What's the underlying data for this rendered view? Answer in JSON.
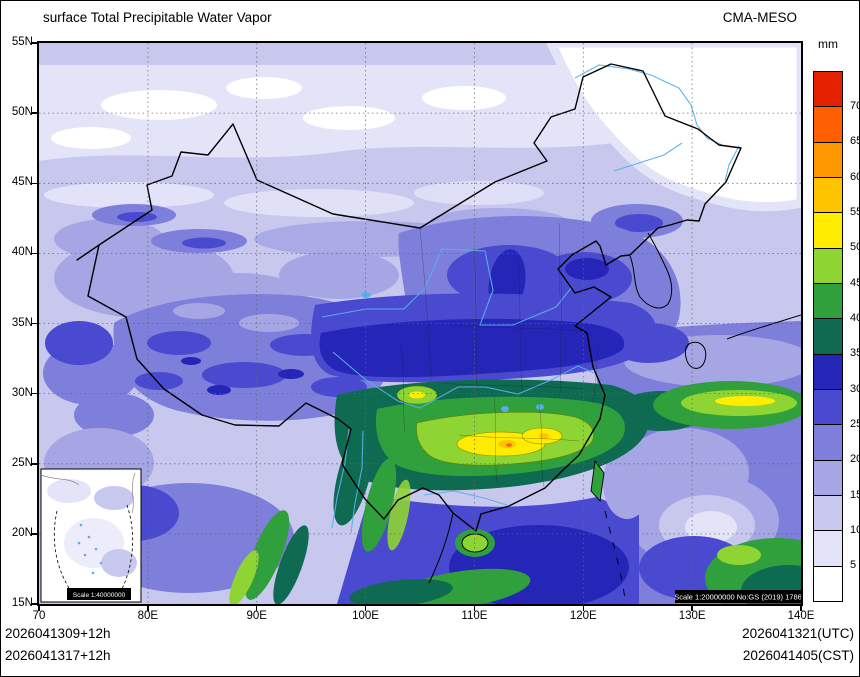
{
  "header": {
    "title": "surface Total Precipitable Water Vapor",
    "model_label": "CMA-MESO"
  },
  "colorbar": {
    "unit": "mm",
    "levels": [
      "5",
      "10",
      "15",
      "20",
      "25",
      "30",
      "35",
      "40",
      "45",
      "50",
      "55",
      "60",
      "65",
      "70"
    ],
    "colors_bottom_to_top": [
      "#ffffff",
      "#e4e4f8",
      "#c8c8ef",
      "#a6a6e5",
      "#7e7edb",
      "#4a4ad0",
      "#2525b8",
      "#0e6a50",
      "#2fa03c",
      "#8ed432",
      "#ffec00",
      "#ffc400",
      "#ff9800",
      "#ff5f00",
      "#e32000"
    ]
  },
  "axes": {
    "lat_labels_top_to_bottom": [
      "55N",
      "50N",
      "45N",
      "40N",
      "35N",
      "30N",
      "25N",
      "20N",
      "15N"
    ],
    "lon_labels_left_to_right": [
      "70",
      "80E",
      "90E",
      "100E",
      "110E",
      "120E",
      "130E",
      "140E"
    ]
  },
  "map": {
    "inset_scale_label": "Scale 1:40000000",
    "map_scale_label": "Scale 1:20000000 No:GS (2019) 1786"
  },
  "footer": {
    "init_line_utc": "2026041309+12h",
    "init_line_cst": "2026041317+12h",
    "valid_line_utc": "2026041321(UTC)",
    "valid_line_cst": "2026041405(CST)"
  }
}
